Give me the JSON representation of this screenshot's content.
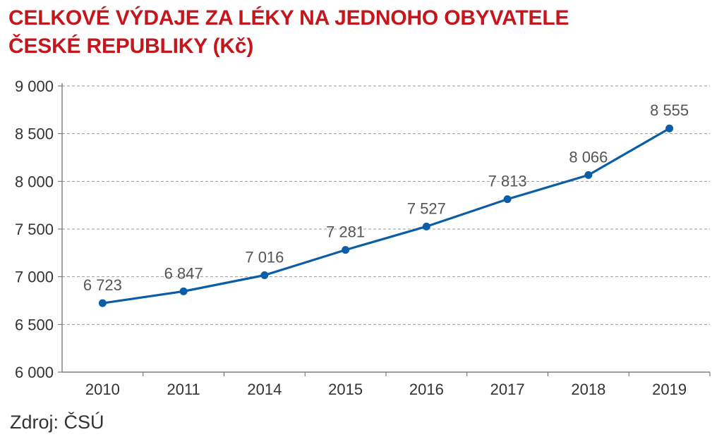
{
  "chart_data": {
    "type": "line",
    "title": "CELKOVÉ VÝDAJE ZA LÉKY NA JEDNOHO OBYVATELE ČESKÉ REPUBLIKY (Kč)",
    "categories": [
      "2010",
      "2011",
      "2014",
      "2015",
      "2016",
      "2017",
      "2018",
      "2019"
    ],
    "series": [
      {
        "values": [
          6723,
          6847,
          7016,
          7281,
          7527,
          7813,
          8066,
          8555
        ],
        "labels": [
          "6 723",
          "6 847",
          "7 016",
          "7 281",
          "7 527",
          "7 813",
          "8 066",
          "8 555"
        ]
      }
    ],
    "ylim": [
      6000,
      9000
    ],
    "yticks": [
      6000,
      6500,
      7000,
      7500,
      8000,
      8500,
      9000
    ],
    "ytick_labels": [
      "6 000",
      "6 500",
      "7 000",
      "7 500",
      "8 000",
      "8 500",
      "9 000"
    ],
    "grid": true,
    "line_color": "#0a5ea8",
    "title_color": "#c4161c"
  },
  "source": "Zdroj: ČSÚ"
}
